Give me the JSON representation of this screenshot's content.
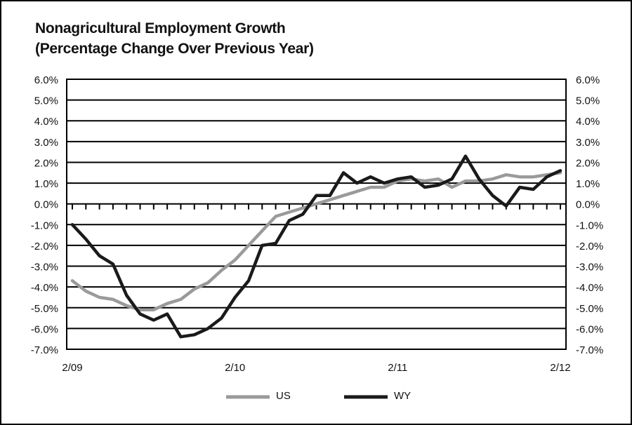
{
  "chart_data": {
    "type": "line",
    "title": "Nonagricultural Employment Growth",
    "subtitle": "(Percentage Change Over Previous Year)",
    "xlabel": "",
    "ylabel": "",
    "ylim": [
      -7.0,
      6.0
    ],
    "yticks": [
      "6.0%",
      "5.0%",
      "4.0%",
      "3.0%",
      "2.0%",
      "1.0%",
      "0.0%",
      "-1.0%",
      "-2.0%",
      "-3.0%",
      "-4.0%",
      "-5.0%",
      "-6.0%",
      "-7.0%"
    ],
    "yticks_values": [
      6,
      5,
      4,
      3,
      2,
      1,
      0,
      -1,
      -2,
      -3,
      -4,
      -5,
      -6,
      -7
    ],
    "xticks": [
      "2/09",
      "2/10",
      "2/11",
      "2/12"
    ],
    "x_months": [
      "2/09",
      "3/09",
      "4/09",
      "5/09",
      "6/09",
      "7/09",
      "8/09",
      "9/09",
      "10/09",
      "11/09",
      "12/09",
      "1/10",
      "2/10",
      "3/10",
      "4/10",
      "5/10",
      "6/10",
      "7/10",
      "8/10",
      "9/10",
      "10/10",
      "11/10",
      "12/10",
      "1/11",
      "2/11",
      "3/11",
      "4/11",
      "5/11",
      "6/11",
      "7/11",
      "8/11",
      "9/11",
      "10/11",
      "11/11",
      "12/11",
      "1/12",
      "2/12"
    ],
    "grid": true,
    "legend_position": "bottom-center",
    "series": [
      {
        "name": "US",
        "color": "#9a9a9a",
        "values": [
          -3.7,
          -4.2,
          -4.5,
          -4.6,
          -4.9,
          -5.1,
          -5.1,
          -4.8,
          -4.6,
          -4.1,
          -3.8,
          -3.2,
          -2.7,
          -2.0,
          -1.3,
          -0.6,
          -0.4,
          -0.2,
          0.0,
          0.2,
          0.4,
          0.6,
          0.8,
          0.8,
          1.1,
          1.2,
          1.1,
          1.2,
          0.8,
          1.1,
          1.1,
          1.2,
          1.4,
          1.3,
          1.3,
          1.4,
          1.5
        ]
      },
      {
        "name": "WY",
        "color": "#1a1a1a",
        "values": [
          -1.0,
          -1.7,
          -2.5,
          -2.9,
          -4.4,
          -5.3,
          -5.6,
          -5.3,
          -6.4,
          -6.3,
          -6.0,
          -5.5,
          -4.5,
          -3.7,
          -2.0,
          -1.9,
          -0.8,
          -0.5,
          0.4,
          0.4,
          1.5,
          1.0,
          1.3,
          1.0,
          1.2,
          1.3,
          0.8,
          0.9,
          1.2,
          2.3,
          1.2,
          0.4,
          -0.1,
          0.8,
          0.7,
          1.3,
          1.6
        ]
      }
    ]
  }
}
